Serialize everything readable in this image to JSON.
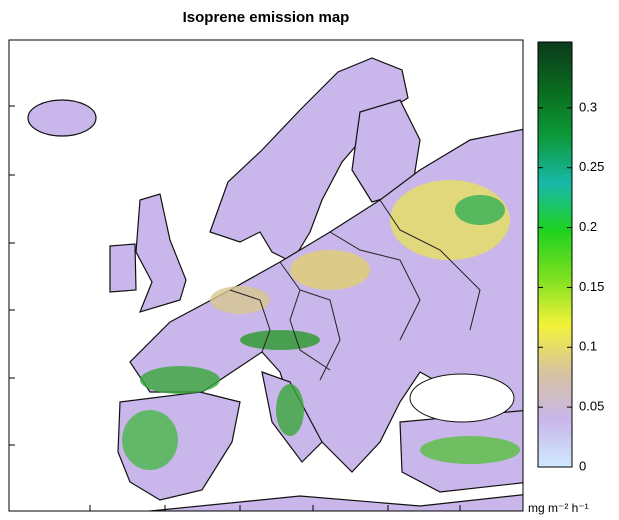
{
  "chart_data": {
    "type": "map",
    "title": "Isoprene emission map",
    "colorbar": {
      "clim": [
        0,
        0.355
      ],
      "ticks": [
        0,
        0.05,
        0.1,
        0.15,
        0.2,
        0.25,
        0.3
      ],
      "unit": "mg m⁻² h⁻¹",
      "colormap": [
        "#cfeaff",
        "#c9b6ea",
        "#d7c3a0",
        "#f2f23a",
        "#7ee020",
        "#1fd21f",
        "#18b8a8",
        "#0c9a3a",
        "#0a6a1e",
        "#0b3a1c"
      ]
    }
  }
}
